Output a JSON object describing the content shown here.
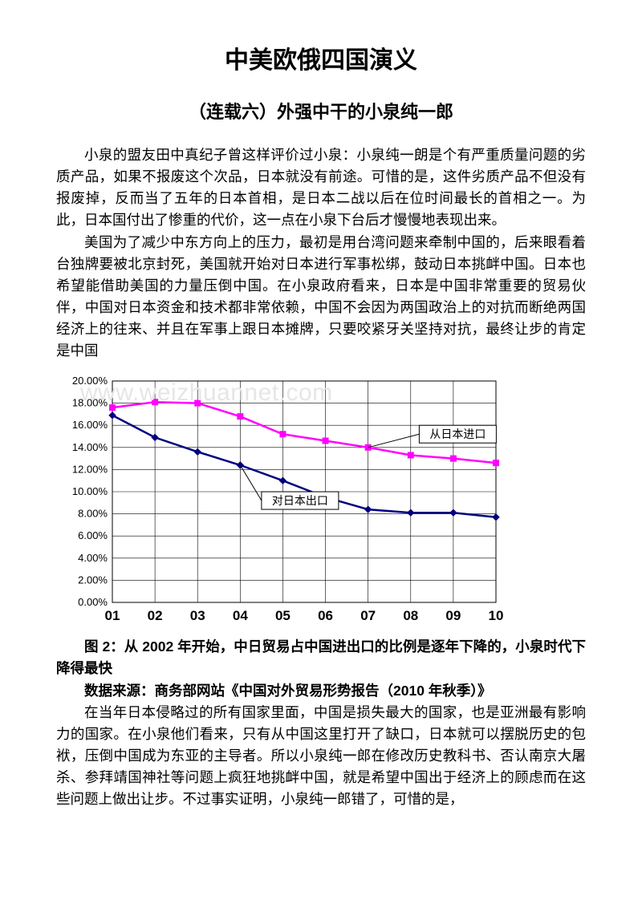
{
  "title": "中美欧俄四国演义",
  "subtitle": "（连载六）外强中干的小泉纯一郎",
  "para1": "小泉的盟友田中真纪子曾这样评价过小泉：小泉纯一朗是个有严重质量问题的劣质产品，如果不报废这个次品，日本就没有前途。可惜的是，这件劣质产品不但没有报废掉，反而当了五年的日本首相，是日本二战以后在位时间最长的首相之一。为此，日本国付出了惨重的代价，这一点在小泉下台后才慢慢地表现出来。",
  "para2": "美国为了减少中东方向上的压力，最初是用台湾问题来牵制中国的，后来眼看着台独牌要被北京封死，美国就开始对日本进行军事松绑，鼓动日本挑衅中国。日本也希望能借助美国的力量压倒中国。在小泉政府看来，日本是中国非常重要的贸易伙伴，中国对日本资金和技术都非常依赖，中国不会因为两国政治上的对抗而断绝两国经济上的往来、并且在军事上跟日本摊牌，只要咬紧牙关坚持对抗，最终让步的肯定是中国",
  "caption": "图 2：从 2002 年开始，中日贸易占中国进出口的比例是逐年下降的，小泉时代下降得最快",
  "source": "数据来源：商务部网站《中国对外贸易形势报告（2010 年秋季）》",
  "para3": "在当年日本侵略过的所有国家里面，中国是损失最大的国家，也是亚洲最有影响力的国家。在小泉他们看来，只有从中国这里打开了缺口，日本就可以摆脱历史的包袱，压倒中国成为东亚的主导者。所以小泉纯一郎在修改历史教科书、否认南京大屠杀、参拜靖国神社等问题上疯狂地挑衅中国，就是希望中国出于经济上的顾虑而在这些问题上做出让步。不过事实证明，小泉纯一郎错了，可惜的是，",
  "watermark": "www.weizhuannet.com",
  "chart": {
    "type": "line",
    "background_color": "#ffffff",
    "plot_background": "#ffffff",
    "grid_color": "#000000",
    "grid_width": 0.6,
    "xlabels": [
      "01",
      "02",
      "03",
      "04",
      "05",
      "06",
      "07",
      "08",
      "09",
      "10"
    ],
    "ylim": [
      0,
      20
    ],
    "ytick_step": 2,
    "ytick_labels": [
      "0.00%",
      "2.00%",
      "4.00%",
      "6.00%",
      "8.00%",
      "10.00%",
      "12.00%",
      "14.00%",
      "16.00%",
      "18.00%",
      "20.00%"
    ],
    "label_fontsize": 12,
    "tick_fontsize": 13,
    "series": [
      {
        "name": "从日本进口",
        "color": "#ff00ff",
        "marker": "square",
        "marker_size": 7,
        "line_width": 2.5,
        "values": [
          17.6,
          18.1,
          18.0,
          16.8,
          15.2,
          14.6,
          14.0,
          13.3,
          13.0,
          12.6
        ],
        "label_box": {
          "x_index": 7.2,
          "y": 15.2,
          "text": "从日本进口",
          "border_color": "#000000",
          "bg": "#ffffff"
        }
      },
      {
        "name": "对日本出口",
        "color": "#000080",
        "marker": "diamond",
        "marker_size": 8,
        "line_width": 2.5,
        "values": [
          16.9,
          14.9,
          13.6,
          12.4,
          11.0,
          9.5,
          8.4,
          8.1,
          8.1,
          7.7
        ],
        "label_box": {
          "x_index": 3.5,
          "y": 9.2,
          "text": "对日本出口",
          "border_color": "#000000",
          "bg": "#ffffff"
        }
      }
    ]
  }
}
